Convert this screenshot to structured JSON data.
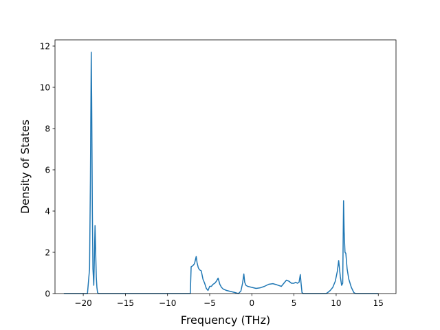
{
  "chart_data": {
    "type": "line",
    "title": "",
    "xlabel": "Frequency (THz)",
    "ylabel": "Density of States",
    "xlim": [
      -23.35,
      17.1
    ],
    "ylim": [
      0,
      12.3
    ],
    "xticks": [
      -20,
      -15,
      -10,
      -5,
      0,
      5,
      10,
      15
    ],
    "yticks": [
      0,
      2,
      4,
      6,
      8,
      10,
      12
    ],
    "grid": false,
    "legend": "none",
    "series": [
      {
        "color": "#1f77b4",
        "x": [
          -22.3,
          -19.5,
          -19.25,
          -19.15,
          -19.05,
          -19.0,
          -18.92,
          -18.85,
          -18.75,
          -18.6,
          -18.5,
          -18.45,
          -18.38,
          -18.3,
          -18.2,
          -18.1,
          -18.0,
          -17.5,
          -16.0,
          -14.0,
          -12.0,
          -10.0,
          -8.0,
          -7.3,
          -7.2,
          -7.0,
          -6.8,
          -6.6,
          -6.5,
          -6.35,
          -6.2,
          -6.0,
          -5.8,
          -5.6,
          -5.4,
          -5.2,
          -5.0,
          -4.8,
          -4.6,
          -4.4,
          -4.2,
          -4.0,
          -3.8,
          -3.6,
          -3.4,
          -3.0,
          -2.5,
          -2.0,
          -1.6,
          -1.3,
          -1.1,
          -0.95,
          -0.85,
          -0.7,
          -0.5,
          0.0,
          0.5,
          1.0,
          1.5,
          2.0,
          2.5,
          3.0,
          3.5,
          3.8,
          4.1,
          4.4,
          4.7,
          5.0,
          5.2,
          5.4,
          5.6,
          5.75,
          5.85,
          5.95,
          6.1,
          7.0,
          8.0,
          8.8,
          9.0,
          9.3,
          9.6,
          9.9,
          10.15,
          10.3,
          10.5,
          10.65,
          10.78,
          10.88,
          10.95,
          11.05,
          11.15,
          11.3,
          11.5,
          11.8,
          12.1,
          12.3,
          13.0,
          14.0,
          15.0
        ],
        "y": [
          0.0,
          0.0,
          1.2,
          5.5,
          11.7,
          9.5,
          4.0,
          1.2,
          0.4,
          3.3,
          1.6,
          0.8,
          0.3,
          0.05,
          0.0,
          0.0,
          0.0,
          0.0,
          0.0,
          0.0,
          0.0,
          0.0,
          0.0,
          0.0,
          1.3,
          1.35,
          1.45,
          1.8,
          1.5,
          1.25,
          1.15,
          1.1,
          0.7,
          0.5,
          0.25,
          0.15,
          0.35,
          0.35,
          0.45,
          0.5,
          0.6,
          0.75,
          0.45,
          0.3,
          0.22,
          0.15,
          0.1,
          0.05,
          0.0,
          0.12,
          0.5,
          0.95,
          0.55,
          0.4,
          0.35,
          0.3,
          0.25,
          0.28,
          0.35,
          0.45,
          0.48,
          0.42,
          0.35,
          0.5,
          0.65,
          0.6,
          0.5,
          0.5,
          0.55,
          0.5,
          0.55,
          0.92,
          0.45,
          0.05,
          0.0,
          0.0,
          0.0,
          0.0,
          0.05,
          0.15,
          0.3,
          0.6,
          1.1,
          1.6,
          0.8,
          0.4,
          0.5,
          4.5,
          3.0,
          2.0,
          1.95,
          1.2,
          0.7,
          0.3,
          0.05,
          0.0,
          0.0,
          0.0,
          0.0
        ]
      }
    ]
  }
}
